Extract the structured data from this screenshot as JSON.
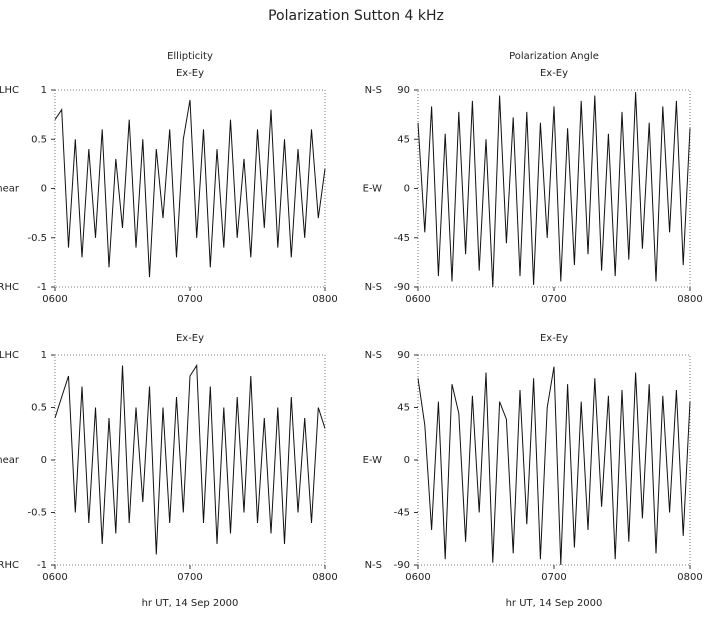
{
  "title": "Polarization Sutton 4 kHz",
  "chart_data": [
    {
      "type": "line",
      "title": "Ellipticity",
      "subtitle": "Ex-Ey",
      "color": "#111111",
      "x": [
        6,
        6.05,
        6.1,
        6.15,
        6.2,
        6.25,
        6.3,
        6.35,
        6.4,
        6.45,
        6.5,
        6.55,
        6.6,
        6.65,
        6.7,
        6.75,
        6.8,
        6.85,
        6.9,
        6.95,
        7,
        7.05,
        7.1,
        7.15,
        7.2,
        7.25,
        7.3,
        7.35,
        7.4,
        7.45,
        7.5,
        7.55,
        7.6,
        7.65,
        7.7,
        7.75,
        7.8,
        7.85,
        7.9,
        7.95,
        8
      ],
      "values": [
        0.7,
        0.8,
        -0.6,
        0.5,
        -0.7,
        0.4,
        -0.5,
        0.6,
        -0.8,
        0.3,
        -0.4,
        0.7,
        -0.6,
        0.5,
        -0.9,
        0.4,
        -0.3,
        0.6,
        -0.7,
        0.5,
        0.9,
        -0.5,
        0.6,
        -0.8,
        0.4,
        -0.6,
        0.7,
        -0.5,
        0.3,
        -0.7,
        0.6,
        -0.4,
        0.8,
        -0.6,
        0.5,
        -0.7,
        0.4,
        -0.5,
        0.6,
        -0.3,
        0.2
      ],
      "xlim": [
        6,
        8
      ],
      "xticks": [
        {
          "value": 6,
          "label": "0600"
        },
        {
          "value": 7,
          "label": "0700"
        },
        {
          "value": 8,
          "label": "0800"
        }
      ],
      "ylim": [
        -1,
        1
      ],
      "yticks": [
        -1,
        -0.5,
        0,
        0.5,
        1
      ],
      "ylabels_side": [
        {
          "value": 1,
          "label": "LHC"
        },
        {
          "value": 0,
          "label": "Linear"
        },
        {
          "value": -1,
          "label": "RHC"
        }
      ]
    },
    {
      "type": "line",
      "title": "Polarization Angle",
      "subtitle": "Ex-Ey",
      "color": "#111111",
      "x": [
        6,
        6.05,
        6.1,
        6.15,
        6.2,
        6.25,
        6.3,
        6.35,
        6.4,
        6.45,
        6.5,
        6.55,
        6.6,
        6.65,
        6.7,
        6.75,
        6.8,
        6.85,
        6.9,
        6.95,
        7,
        7.05,
        7.1,
        7.15,
        7.2,
        7.25,
        7.3,
        7.35,
        7.4,
        7.45,
        7.5,
        7.55,
        7.6,
        7.65,
        7.7,
        7.75,
        7.8,
        7.85,
        7.9,
        7.95,
        8
      ],
      "values": [
        60,
        -40,
        75,
        -80,
        50,
        -85,
        70,
        -60,
        80,
        -75,
        45,
        -90,
        85,
        -50,
        65,
        -80,
        70,
        -88,
        60,
        -45,
        75,
        -85,
        55,
        -70,
        80,
        -60,
        85,
        -75,
        50,
        -80,
        70,
        -65,
        88,
        -55,
        60,
        -85,
        75,
        -40,
        80,
        -70,
        55
      ],
      "xlim": [
        6,
        8
      ],
      "xticks": [
        {
          "value": 6,
          "label": "0600"
        },
        {
          "value": 7,
          "label": "0700"
        },
        {
          "value": 8,
          "label": "0800"
        }
      ],
      "ylim": [
        -90,
        90
      ],
      "yticks": [
        -90,
        -45,
        0,
        45,
        90
      ],
      "ylabels_side": [
        {
          "value": 90,
          "label": "N-S"
        },
        {
          "value": 0,
          "label": "E-W"
        },
        {
          "value": -90,
          "label": "N-S"
        }
      ]
    },
    {
      "type": "line",
      "subtitle": "Ex-Ey",
      "xlabel": "hr UT, 14 Sep 2000",
      "color": "#111111",
      "x": [
        6,
        6.05,
        6.1,
        6.15,
        6.2,
        6.25,
        6.3,
        6.35,
        6.4,
        6.45,
        6.5,
        6.55,
        6.6,
        6.65,
        6.7,
        6.75,
        6.8,
        6.85,
        6.9,
        6.95,
        7,
        7.05,
        7.1,
        7.15,
        7.2,
        7.25,
        7.3,
        7.35,
        7.4,
        7.45,
        7.5,
        7.55,
        7.6,
        7.65,
        7.7,
        7.75,
        7.8,
        7.85,
        7.9,
        7.95,
        8
      ],
      "values": [
        0.4,
        0.6,
        0.8,
        -0.5,
        0.7,
        -0.6,
        0.5,
        -0.8,
        0.4,
        -0.7,
        0.9,
        -0.6,
        0.5,
        -0.4,
        0.7,
        -0.9,
        0.5,
        -0.6,
        0.6,
        -0.5,
        0.8,
        0.9,
        -0.6,
        0.7,
        -0.8,
        0.5,
        -0.7,
        0.6,
        -0.5,
        0.8,
        -0.6,
        0.4,
        -0.7,
        0.5,
        -0.8,
        0.6,
        -0.5,
        0.4,
        -0.6,
        0.5,
        0.3
      ],
      "xlim": [
        6,
        8
      ],
      "xticks": [
        {
          "value": 6,
          "label": "0600"
        },
        {
          "value": 7,
          "label": "0700"
        },
        {
          "value": 8,
          "label": "0800"
        }
      ],
      "ylim": [
        -1,
        1
      ],
      "yticks": [
        -1,
        -0.5,
        0,
        0.5,
        1
      ],
      "ylabels_side": [
        {
          "value": 1,
          "label": "LHC"
        },
        {
          "value": 0,
          "label": "Linear"
        },
        {
          "value": -1,
          "label": "RHC"
        }
      ]
    },
    {
      "type": "line",
      "subtitle": "Ex-Ey",
      "xlabel": "hr UT, 14 Sep 2000",
      "color": "#111111",
      "x": [
        6,
        6.05,
        6.1,
        6.15,
        6.2,
        6.25,
        6.3,
        6.35,
        6.4,
        6.45,
        6.5,
        6.55,
        6.6,
        6.65,
        6.7,
        6.75,
        6.8,
        6.85,
        6.9,
        6.95,
        7,
        7.05,
        7.1,
        7.15,
        7.2,
        7.25,
        7.3,
        7.35,
        7.4,
        7.45,
        7.5,
        7.55,
        7.6,
        7.65,
        7.7,
        7.75,
        7.8,
        7.85,
        7.9,
        7.95,
        8
      ],
      "values": [
        70,
        30,
        -60,
        50,
        -85,
        65,
        40,
        -70,
        55,
        -45,
        75,
        -88,
        50,
        35,
        -80,
        60,
        -55,
        70,
        -85,
        45,
        80,
        -90,
        65,
        -75,
        50,
        -60,
        70,
        -40,
        55,
        -85,
        60,
        -70,
        75,
        -50,
        65,
        -80,
        55,
        -45,
        60,
        -65,
        50
      ],
      "xlim": [
        6,
        8
      ],
      "xticks": [
        {
          "value": 6,
          "label": "0600"
        },
        {
          "value": 7,
          "label": "0700"
        },
        {
          "value": 8,
          "label": "0800"
        }
      ],
      "ylim": [
        -90,
        90
      ],
      "yticks": [
        -90,
        -45,
        0,
        45,
        90
      ],
      "ylabels_side": [
        {
          "value": 90,
          "label": "N-S"
        },
        {
          "value": 0,
          "label": "E-W"
        },
        {
          "value": -90,
          "label": "N-S"
        }
      ]
    }
  ]
}
